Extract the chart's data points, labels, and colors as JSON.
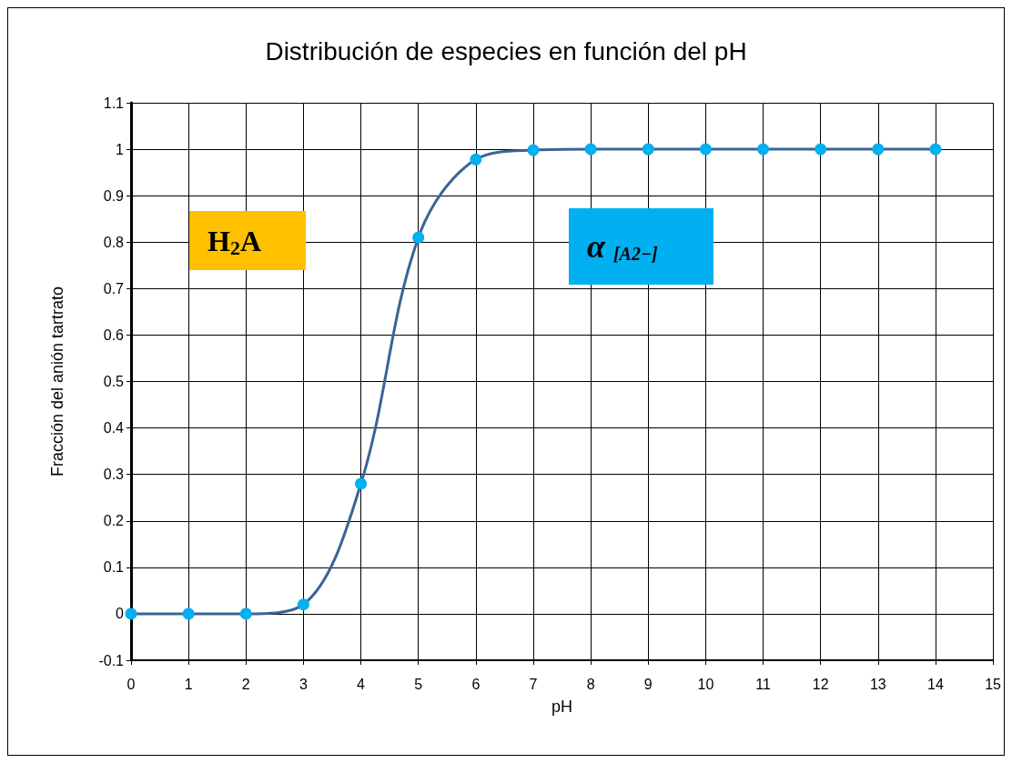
{
  "chart_data": {
    "type": "line",
    "title": "Distribución de especies en función del pH",
    "xlabel": "pH",
    "ylabel": "Fracción del anión tartrato",
    "x": [
      0,
      1,
      2,
      3,
      4,
      5,
      6,
      7,
      8,
      9,
      10,
      11,
      12,
      13,
      14
    ],
    "series": [
      {
        "color": "#00b0f0",
        "values": [
          0,
          0,
          0,
          0.02,
          0.28,
          0.81,
          0.978,
          0.998,
          1,
          1,
          1,
          1,
          1,
          1,
          1
        ]
      }
    ],
    "xlim": [
      0,
      15
    ],
    "xticks": [
      0,
      1,
      2,
      3,
      4,
      5,
      6,
      7,
      8,
      9,
      10,
      11,
      12,
      13,
      14,
      15
    ],
    "ylim": [
      -0.1,
      1.1
    ],
    "yticks": [
      -0.1,
      0,
      0.1,
      0.2,
      0.3,
      0.4,
      0.5,
      0.6,
      0.7,
      0.8,
      0.9,
      1,
      1.1
    ],
    "annotations": [
      "H$_{2}$A",
      "α $_{[A2−]}$"
    ],
    "grid": true,
    "marker": "circle",
    "line_style": "solid"
  }
}
